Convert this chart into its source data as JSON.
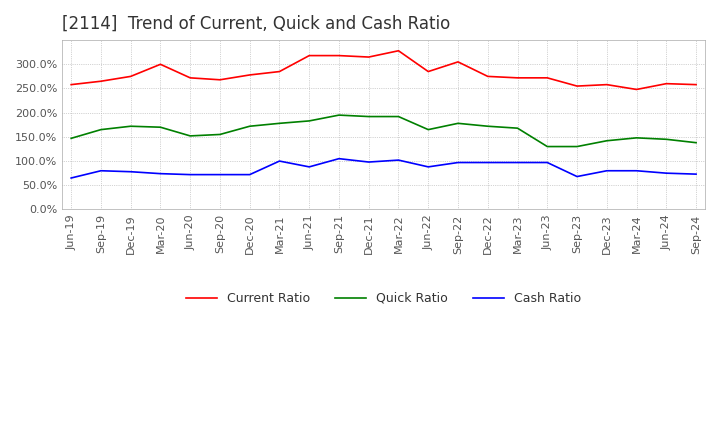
{
  "title": "[2114]  Trend of Current, Quick and Cash Ratio",
  "x_labels": [
    "Jun-19",
    "Sep-19",
    "Dec-19",
    "Mar-20",
    "Jun-20",
    "Sep-20",
    "Dec-20",
    "Mar-21",
    "Jun-21",
    "Sep-21",
    "Dec-21",
    "Mar-22",
    "Jun-22",
    "Sep-22",
    "Dec-22",
    "Mar-23",
    "Jun-23",
    "Sep-23",
    "Dec-23",
    "Mar-24",
    "Jun-24",
    "Sep-24"
  ],
  "current_ratio": [
    2.58,
    2.65,
    2.75,
    3.0,
    2.72,
    2.68,
    2.78,
    2.85,
    3.18,
    3.18,
    3.15,
    3.28,
    2.85,
    3.05,
    2.75,
    2.72,
    2.72,
    2.55,
    2.58,
    2.48,
    2.6,
    2.58
  ],
  "quick_ratio": [
    1.47,
    1.65,
    1.72,
    1.7,
    1.52,
    1.55,
    1.72,
    1.78,
    1.83,
    1.95,
    1.92,
    1.92,
    1.65,
    1.78,
    1.72,
    1.68,
    1.3,
    1.3,
    1.42,
    1.48,
    1.45,
    1.38
  ],
  "cash_ratio": [
    0.65,
    0.8,
    0.78,
    0.74,
    0.72,
    0.72,
    0.72,
    1.0,
    0.88,
    1.05,
    0.98,
    1.02,
    0.88,
    0.97,
    0.97,
    0.97,
    0.97,
    0.68,
    0.8,
    0.8,
    0.75,
    0.73
  ],
  "current_color": "#FF0000",
  "quick_color": "#008000",
  "cash_color": "#0000FF",
  "ylim": [
    0.0,
    3.5
  ],
  "yticks": [
    0.0,
    0.5,
    1.0,
    1.5,
    2.0,
    2.5,
    3.0
  ],
  "background_color": "#FFFFFF",
  "grid_color": "#AAAAAA",
  "title_fontsize": 12,
  "tick_fontsize": 8,
  "legend_fontsize": 9
}
